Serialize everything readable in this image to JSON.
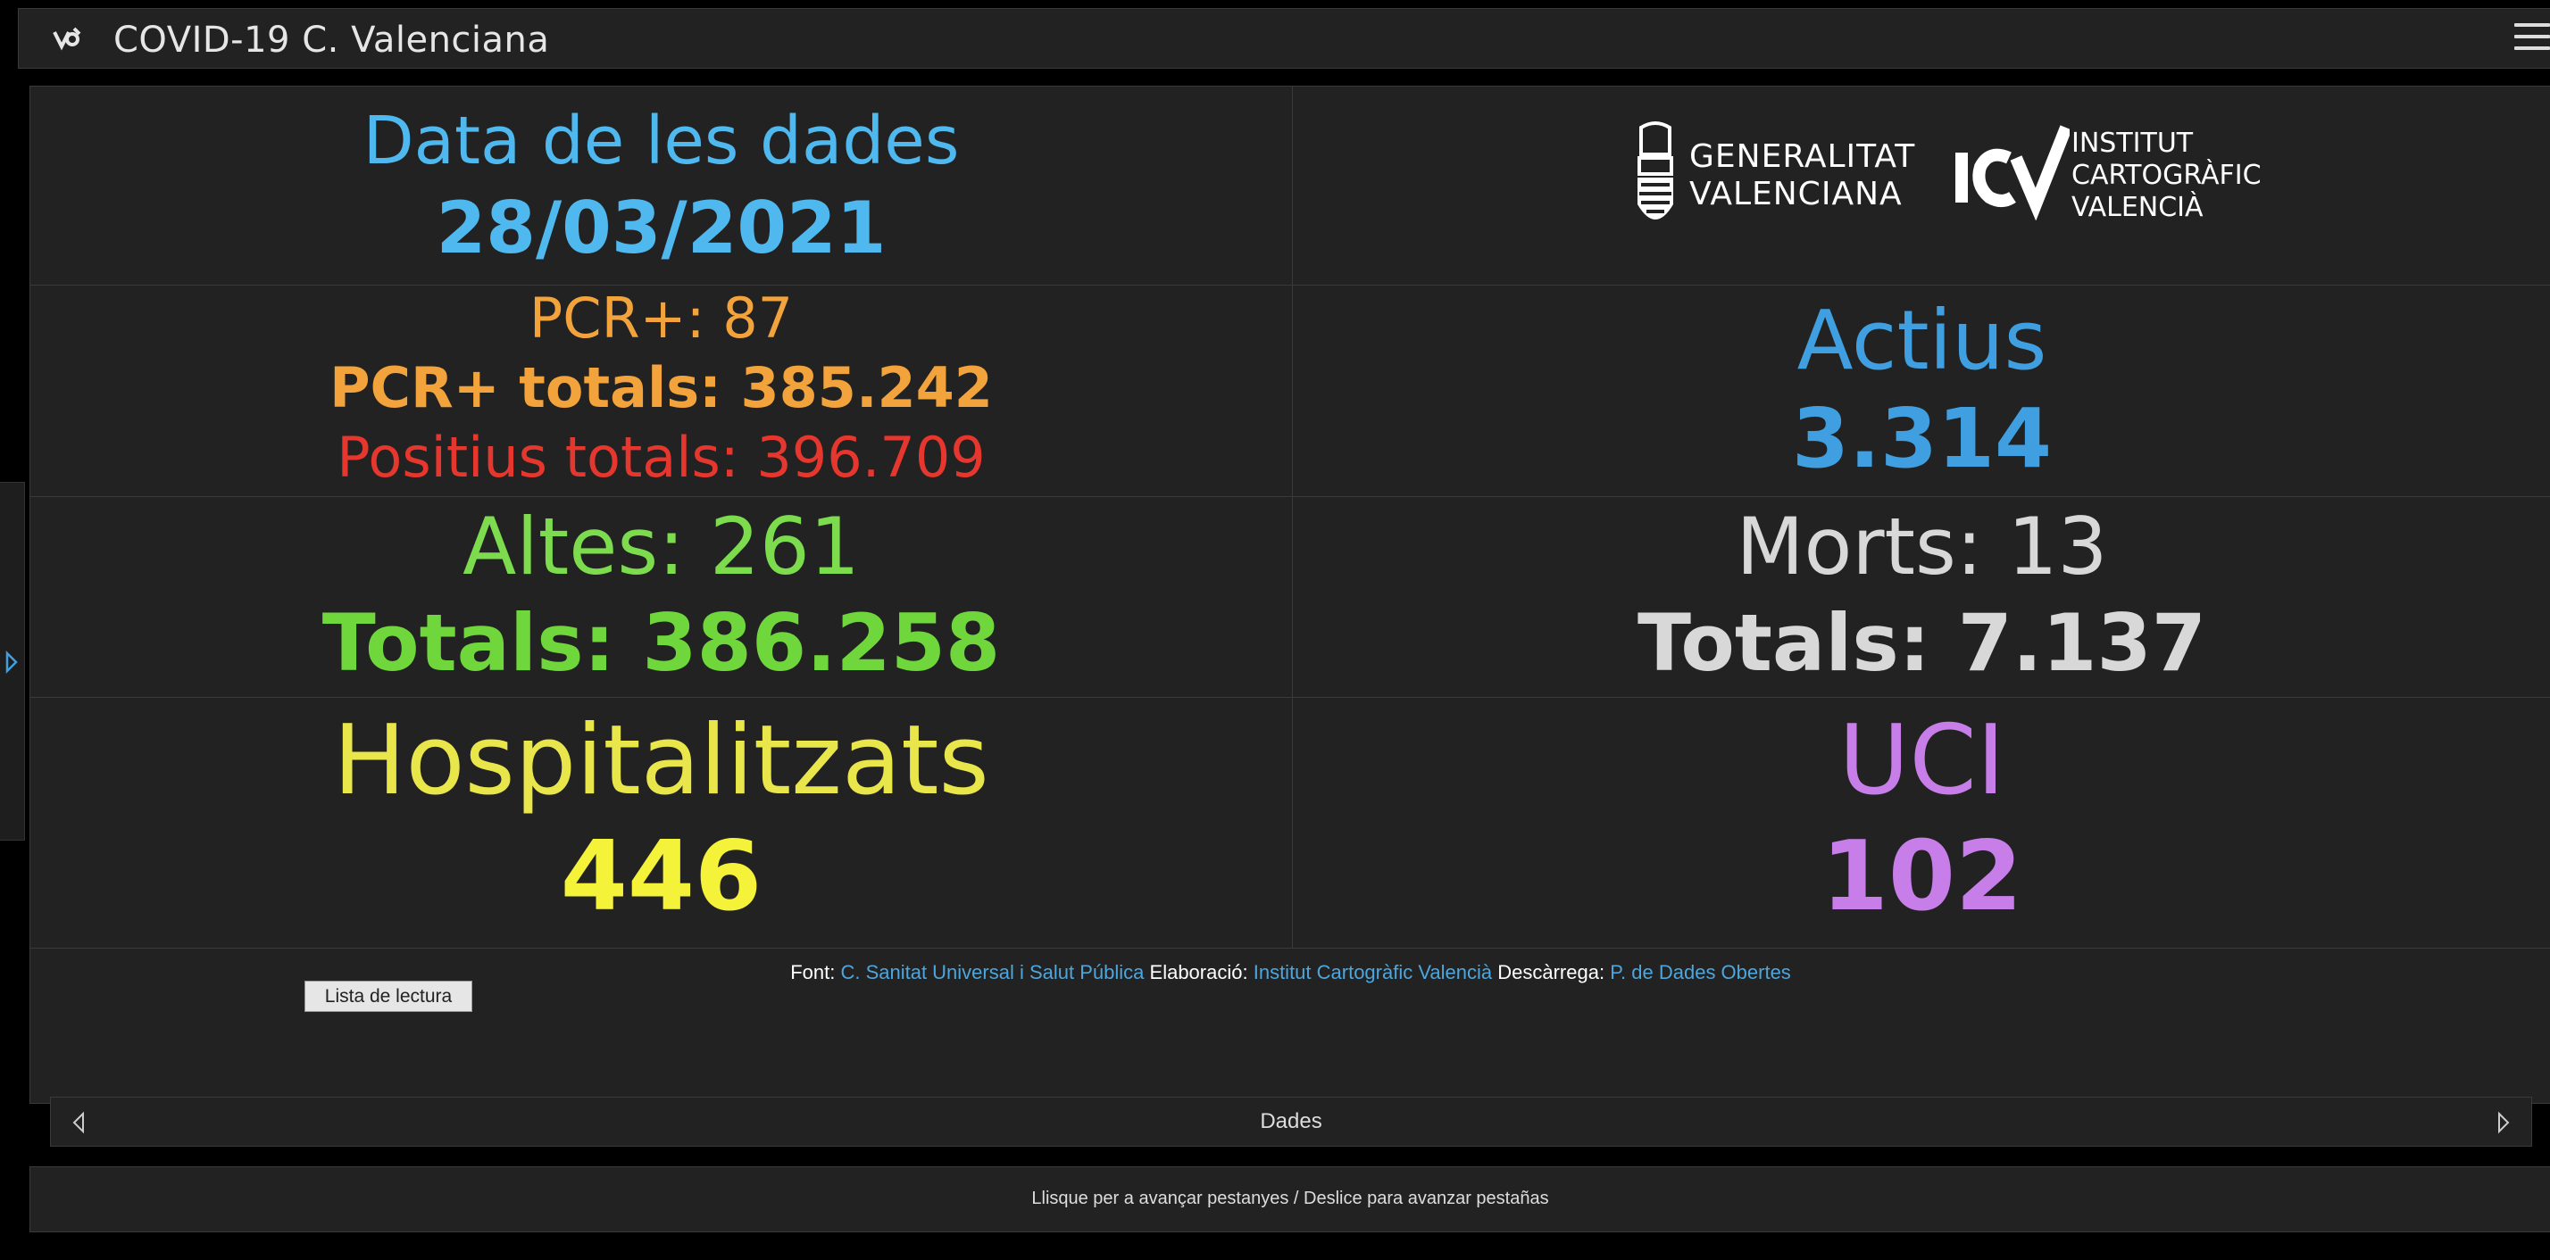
{
  "app": {
    "title": "COVID-19 C. Valenciana"
  },
  "colors": {
    "blue": "#4fb8ee",
    "blue_dark": "#3f9fe0",
    "orange": "#f3a33b",
    "red": "#e5372d",
    "green": "#7ddc4d",
    "green_bold": "#6fd63c",
    "gray": "#d8d8d8",
    "yellow": "#e8e64a",
    "yellow_bold": "#f5f23a",
    "purple": "#c77ee8"
  },
  "date_panel": {
    "label": "Data de les dades",
    "value": "28/03/2021"
  },
  "logos": {
    "generalitat": {
      "line1": "GENERALITAT",
      "line2": "VALENCIANA"
    },
    "icv": {
      "mark": "ICV",
      "line1": "INSTITUT",
      "line2": "CARTOGRÀFIC",
      "line3": "VALENCIÀ"
    }
  },
  "pcr_panel": {
    "pcr_daily": "PCR+: 87",
    "pcr_total": "PCR+ totals: 385.242",
    "positives_total": "Positius totals: 396.709"
  },
  "active_panel": {
    "label": "Actius",
    "value": "3.314"
  },
  "discharges_panel": {
    "daily": "Altes: 261",
    "total": "Totals: 386.258"
  },
  "deaths_panel": {
    "daily": "Morts: 13",
    "total": "Totals: 7.137"
  },
  "hospital_panel": {
    "label": "Hospitalitzats",
    "value": "446"
  },
  "icu_panel": {
    "label": "UCI",
    "value": "102"
  },
  "reading_list_button": "Lista de lectura",
  "sources": {
    "font_label": "Font:",
    "font_value": "C. Sanitat Universal i Salut Pública",
    "elab_label": "Elaboració:",
    "elab_value": "Institut Cartogràfic Valencià",
    "download_label": "Descàrrega:",
    "download_value": "P. de Dades Obertes"
  },
  "tab_nav": {
    "current": "Dades"
  },
  "hint": "Llisque per a avançar pestanyes / Deslice para avanzar pestañas",
  "icons": {
    "app_logo": "app-logo-icon",
    "menu": "hamburger-menu-icon",
    "side_expand": "chevron-right-icon",
    "tab_prev": "triangle-left-icon",
    "tab_next": "triangle-right-icon"
  }
}
